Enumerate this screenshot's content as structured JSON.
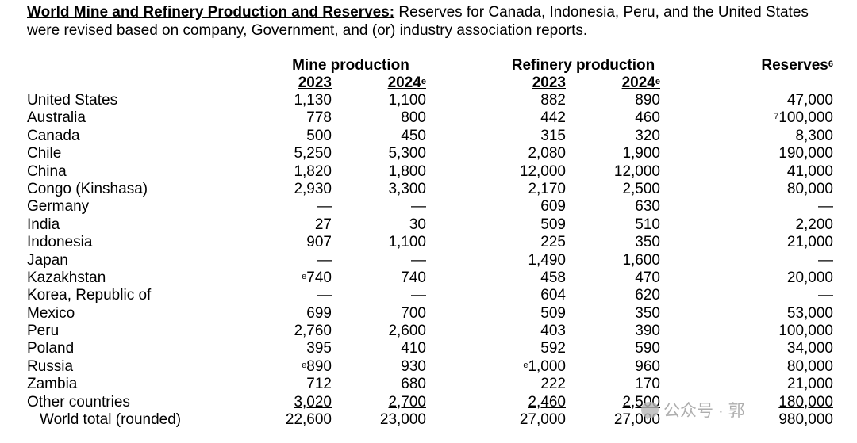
{
  "intro": {
    "title": "World Mine and Refinery Production and Reserves:",
    "text": " Reserves for Canada, Indonesia, Peru, and the United States were revised based on company, Government, and (or) industry association reports."
  },
  "headers": {
    "mine": "Mine production",
    "refinery": "Refinery production",
    "reserves": "Reserves",
    "reserves_sup": "6",
    "year1": "2023",
    "year2": "2024",
    "estimate_sup": "e"
  },
  "rows": [
    {
      "name": "United States",
      "mine23": "1,130",
      "mine24": "1,100",
      "ref23": "882",
      "ref24": "890",
      "reserves": "47,000"
    },
    {
      "name": "Australia",
      "mine23": "778",
      "mine24": "800",
      "ref23": "442",
      "ref24": "460",
      "reserves": "100,000",
      "reserves_sup": "7"
    },
    {
      "name": "Canada",
      "mine23": "500",
      "mine24": "450",
      "ref23": "315",
      "ref24": "320",
      "reserves": "8,300"
    },
    {
      "name": "Chile",
      "mine23": "5,250",
      "mine24": "5,300",
      "ref23": "2,080",
      "ref24": "1,900",
      "reserves": "190,000"
    },
    {
      "name": "China",
      "mine23": "1,820",
      "mine24": "1,800",
      "ref23": "12,000",
      "ref24": "12,000",
      "reserves": "41,000"
    },
    {
      "name": "Congo (Kinshasa)",
      "mine23": "2,930",
      "mine24": "3,300",
      "ref23": "2,170",
      "ref24": "2,500",
      "reserves": "80,000"
    },
    {
      "name": "Germany",
      "mine23": "—",
      "mine24": "—",
      "ref23": "609",
      "ref24": "630",
      "reserves": "—"
    },
    {
      "name": "India",
      "mine23": "27",
      "mine24": "30",
      "ref23": "509",
      "ref24": "510",
      "reserves": "2,200"
    },
    {
      "name": "Indonesia",
      "mine23": "907",
      "mine24": "1,100",
      "ref23": "225",
      "ref24": "350",
      "reserves": "21,000"
    },
    {
      "name": "Japan",
      "mine23": "—",
      "mine24": "—",
      "ref23": "1,490",
      "ref24": "1,600",
      "reserves": "—"
    },
    {
      "name": "Kazakhstan",
      "mine23": "740",
      "mine23_sup": "e",
      "mine24": "740",
      "ref23": "458",
      "ref24": "470",
      "reserves": "20,000"
    },
    {
      "name": "Korea, Republic of",
      "mine23": "—",
      "mine24": "—",
      "ref23": "604",
      "ref24": "620",
      "reserves": "—"
    },
    {
      "name": "Mexico",
      "mine23": "699",
      "mine24": "700",
      "ref23": "509",
      "ref24": "350",
      "reserves": "53,000"
    },
    {
      "name": "Peru",
      "mine23": "2,760",
      "mine24": "2,600",
      "ref23": "403",
      "ref24": "390",
      "reserves": "100,000"
    },
    {
      "name": "Poland",
      "mine23": "395",
      "mine24": "410",
      "ref23": "592",
      "ref24": "590",
      "reserves": "34,000"
    },
    {
      "name": "Russia",
      "mine23": "890",
      "mine23_sup": "e",
      "mine24": "930",
      "ref23": "1,000",
      "ref23_sup": "e",
      "ref24": "960",
      "reserves": "80,000"
    },
    {
      "name": "Zambia",
      "mine23": "712",
      "mine24": "680",
      "ref23": "222",
      "ref24": "170",
      "reserves": "21,000"
    },
    {
      "name": "Other countries",
      "mine23": "3,020",
      "mine24": "2,700",
      "ref23": "2,460",
      "ref24": "2,500",
      "reserves": "180,000",
      "underline": true
    }
  ],
  "total": {
    "name": "World total (rounded)",
    "mine23": "22,600",
    "mine24": "23,000",
    "ref23": "27,000",
    "ref24": "27,000",
    "reserves": "980,000"
  },
  "watermark": {
    "text": "公众号 · 郭"
  }
}
